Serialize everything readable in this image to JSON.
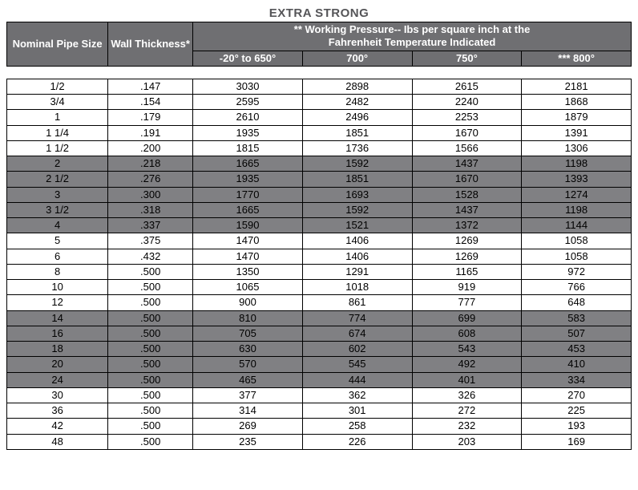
{
  "title": "EXTRA STRONG",
  "header": {
    "nominal": "Nominal Pipe Size",
    "wall": "Wall Thickness*",
    "working_pressure_line1": "** Working Pressure-- Ibs per square inch at the",
    "working_pressure_line2": "Fahrenheit Temperature Indicated",
    "t1": "-20° to 650°",
    "t2": "700°",
    "t3": "750°",
    "t4": "*** 800°"
  },
  "colors": {
    "header_bg": "#6f6f72",
    "header_text": "#ffffff",
    "shade_bg": "#808083",
    "border": "#000000",
    "page_bg": "#ffffff",
    "title_color": "#555558"
  },
  "rows": [
    {
      "shade": false,
      "size": "1/2",
      "wall": ".147",
      "p1": "3030",
      "p2": "2898",
      "p3": "2615",
      "p4": "2181"
    },
    {
      "shade": false,
      "size": "3/4",
      "wall": ".154",
      "p1": "2595",
      "p2": "2482",
      "p3": "2240",
      "p4": "1868"
    },
    {
      "shade": false,
      "size": "1",
      "wall": ".179",
      "p1": "2610",
      "p2": "2496",
      "p3": "2253",
      "p4": "1879"
    },
    {
      "shade": false,
      "size": "1 1/4",
      "wall": ".191",
      "p1": "1935",
      "p2": "1851",
      "p3": "1670",
      "p4": "1391"
    },
    {
      "shade": false,
      "size": "1 1/2",
      "wall": ".200",
      "p1": "1815",
      "p2": "1736",
      "p3": "1566",
      "p4": "1306"
    },
    {
      "shade": true,
      "size": "2",
      "wall": ".218",
      "p1": "1665",
      "p2": "1592",
      "p3": "1437",
      "p4": "1198"
    },
    {
      "shade": true,
      "size": "2 1/2",
      "wall": ".276",
      "p1": "1935",
      "p2": "1851",
      "p3": "1670",
      "p4": "1393"
    },
    {
      "shade": true,
      "size": "3",
      "wall": ".300",
      "p1": "1770",
      "p2": "1693",
      "p3": "1528",
      "p4": "1274"
    },
    {
      "shade": true,
      "size": "3 1/2",
      "wall": ".318",
      "p1": "1665",
      "p2": "1592",
      "p3": "1437",
      "p4": "1198"
    },
    {
      "shade": true,
      "size": "4",
      "wall": ".337",
      "p1": "1590",
      "p2": "1521",
      "p3": "1372",
      "p4": "1144"
    },
    {
      "shade": false,
      "size": "5",
      "wall": ".375",
      "p1": "1470",
      "p2": "1406",
      "p3": "1269",
      "p4": "1058"
    },
    {
      "shade": false,
      "size": "6",
      "wall": ".432",
      "p1": "1470",
      "p2": "1406",
      "p3": "1269",
      "p4": "1058"
    },
    {
      "shade": false,
      "size": "8",
      "wall": ".500",
      "p1": "1350",
      "p2": "1291",
      "p3": "1165",
      "p4": "972"
    },
    {
      "shade": false,
      "size": "10",
      "wall": ".500",
      "p1": "1065",
      "p2": "1018",
      "p3": "919",
      "p4": "766"
    },
    {
      "shade": false,
      "size": "12",
      "wall": ".500",
      "p1": "900",
      "p2": "861",
      "p3": "777",
      "p4": "648"
    },
    {
      "shade": true,
      "size": "14",
      "wall": ".500",
      "p1": "810",
      "p2": "774",
      "p3": "699",
      "p4": "583"
    },
    {
      "shade": true,
      "size": "16",
      "wall": ".500",
      "p1": "705",
      "p2": "674",
      "p3": "608",
      "p4": "507"
    },
    {
      "shade": true,
      "size": "18",
      "wall": ".500",
      "p1": "630",
      "p2": "602",
      "p3": "543",
      "p4": "453"
    },
    {
      "shade": true,
      "size": "20",
      "wall": ".500",
      "p1": "570",
      "p2": "545",
      "p3": "492",
      "p4": "410"
    },
    {
      "shade": true,
      "size": "24",
      "wall": ".500",
      "p1": "465",
      "p2": "444",
      "p3": "401",
      "p4": "334"
    },
    {
      "shade": false,
      "size": "30",
      "wall": ".500",
      "p1": "377",
      "p2": "362",
      "p3": "326",
      "p4": "270"
    },
    {
      "shade": false,
      "size": "36",
      "wall": ".500",
      "p1": "314",
      "p2": "301",
      "p3": "272",
      "p4": "225"
    },
    {
      "shade": false,
      "size": "42",
      "wall": ".500",
      "p1": "269",
      "p2": "258",
      "p3": "232",
      "p4": "193"
    },
    {
      "shade": false,
      "size": "48",
      "wall": ".500",
      "p1": "235",
      "p2": "226",
      "p3": "203",
      "p4": "169"
    }
  ]
}
